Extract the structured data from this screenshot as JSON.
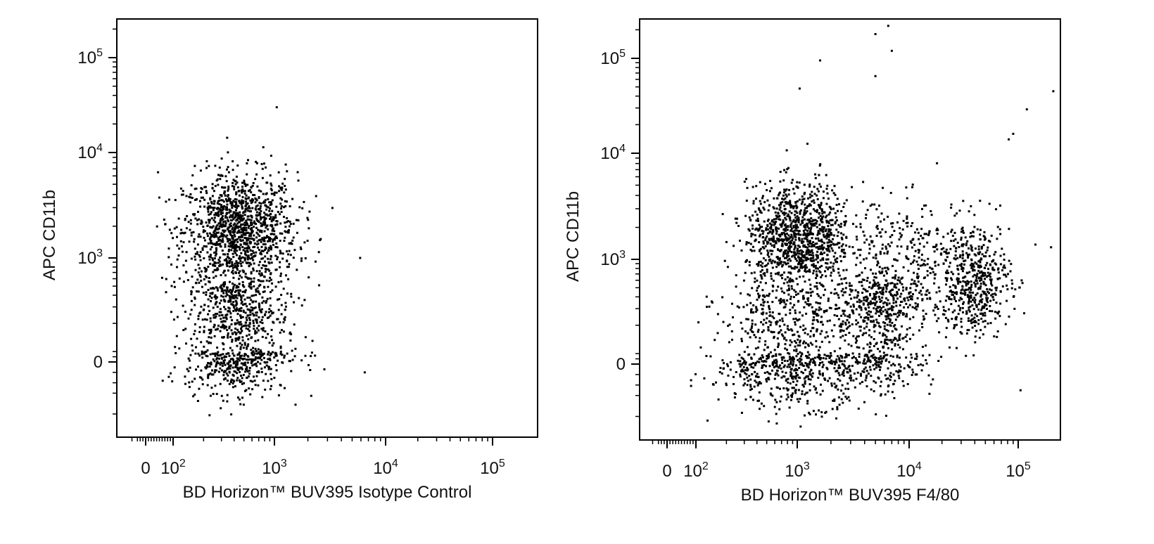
{
  "chart_data": [
    {
      "type": "scatter",
      "title": "",
      "xlabel": "BD Horizon™ BUV395 Isotype Control",
      "ylabel": "APC CD11b",
      "x_scale": "biexponential",
      "y_scale": "biexponential",
      "x_ticks": [
        "0",
        "10^2",
        "10^3",
        "10^4",
        "10^5"
      ],
      "y_ticks": [
        "0",
        "10^3",
        "10^4",
        "10^5"
      ],
      "grid": false,
      "legend": "none",
      "dot_color": "#000000",
      "populations": [
        {
          "name": "",
          "x_center": 450,
          "y_center": 1800,
          "x_spread": 0.55,
          "y_spread": 0.55,
          "count": 1300
        },
        {
          "name": "",
          "x_center": 420,
          "y_center": 150,
          "x_spread": 0.5,
          "y_spread": 0.45,
          "count": 900
        }
      ],
      "outliers": [
        [
          1050,
          30000
        ],
        [
          5900,
          1000
        ],
        [
          6500,
          -100
        ],
        [
          2200,
          130
        ],
        [
          45,
          6500
        ]
      ]
    },
    {
      "type": "scatter",
      "title": "",
      "xlabel": "BD Horizon™ BUV395 F4/80",
      "ylabel": "APC CD11b",
      "x_scale": "biexponential",
      "y_scale": "biexponential",
      "x_ticks": [
        "0",
        "10^2",
        "10^3",
        "10^4",
        "10^5"
      ],
      "y_ticks": [
        "0",
        "10^3",
        "10^4",
        "10^5"
      ],
      "grid": false,
      "legend": "none",
      "dot_color": "#000000",
      "populations": [
        {
          "name": "",
          "x_center": 1000,
          "y_center": 1600,
          "x_spread": 0.5,
          "y_spread": 0.5,
          "count": 1100
        },
        {
          "name": "",
          "x_center": 900,
          "y_center": 50,
          "x_spread": 0.75,
          "y_spread": 0.45,
          "count": 900
        },
        {
          "name": "",
          "x_center": 6000,
          "y_center": 250,
          "x_spread": 0.45,
          "y_spread": 0.55,
          "count": 600
        },
        {
          "name": "",
          "x_center": 9000,
          "y_center": 1200,
          "x_spread": 0.5,
          "y_spread": 0.5,
          "count": 200
        },
        {
          "name": "",
          "x_center": 38000,
          "y_center": 600,
          "x_spread": 0.35,
          "y_spread": 0.6,
          "count": 550
        }
      ],
      "outliers": [
        [
          6500,
          220000
        ],
        [
          5000,
          180000
        ],
        [
          7000,
          120000
        ],
        [
          1600,
          95000
        ],
        [
          5000,
          65000
        ],
        [
          1050,
          48000
        ],
        [
          210000,
          45000
        ],
        [
          120000,
          29000
        ],
        [
          90000,
          16000
        ],
        [
          82000,
          14000
        ],
        [
          200000,
          1300
        ],
        [
          105000,
          -250
        ]
      ]
    }
  ]
}
